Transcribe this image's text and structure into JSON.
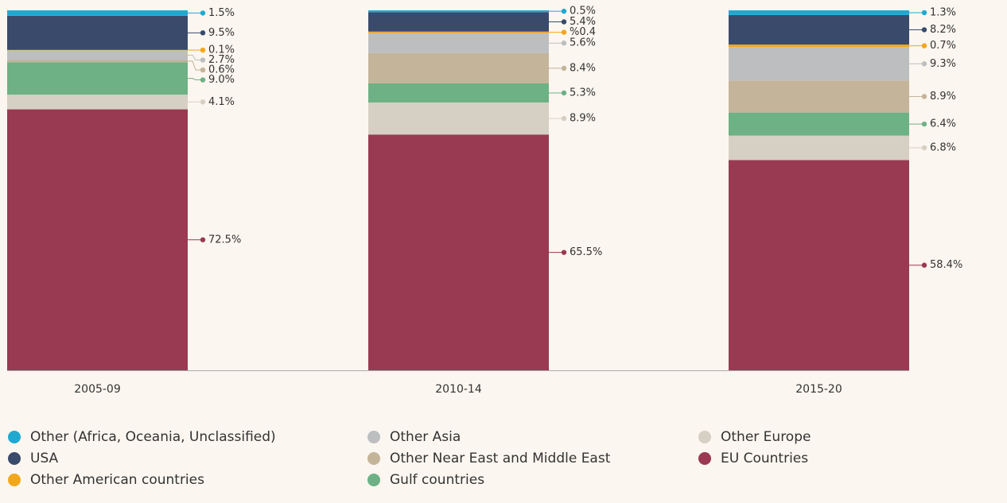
{
  "chart_data": {
    "type": "stacked_bar",
    "categories": [
      "2005-09",
      "2010-14",
      "2015-20"
    ],
    "ylim": [
      0,
      100
    ],
    "series": [
      {
        "name": "Other (Africa, Oceania, Unclassified)",
        "color": "#1fa9d1",
        "values": [
          1.5,
          0.5,
          1.3
        ],
        "value_labels": [
          "1.5%",
          "0.5%",
          "1.3%"
        ]
      },
      {
        "name": "USA",
        "color": "#3a4a6b",
        "values": [
          9.5,
          5.4,
          8.2
        ],
        "value_labels": [
          "9.5%",
          "5.4%",
          "8.2%"
        ]
      },
      {
        "name": "Other American countries",
        "color": "#f2a71b",
        "values": [
          0.1,
          0.4,
          0.7
        ],
        "value_labels": [
          "0.1%",
          "%0.4",
          "0.7%"
        ]
      },
      {
        "name": "Other Asia",
        "color": "#bdbec0",
        "values": [
          2.7,
          5.6,
          9.3
        ],
        "value_labels": [
          "2.7%",
          "5.6%",
          "9.3%"
        ]
      },
      {
        "name": "Other Near East and Middle East",
        "color": "#c4b49a",
        "values": [
          0.6,
          8.4,
          8.9
        ],
        "value_labels": [
          "0.6%",
          "8.4%",
          "8.9%"
        ]
      },
      {
        "name": "Gulf countries",
        "color": "#6db184",
        "values": [
          9.0,
          5.3,
          6.4
        ],
        "value_labels": [
          "9.0%",
          "5.3%",
          "6.4%"
        ]
      },
      {
        "name": "Other Europe",
        "color": "#d6cfc4",
        "values": [
          4.1,
          8.9,
          6.8
        ],
        "value_labels": [
          "4.1%",
          "8.9%",
          "6.8%"
        ]
      },
      {
        "name": "EU Countries",
        "color": "#993a52",
        "values": [
          72.5,
          65.5,
          58.4
        ],
        "value_labels": [
          "72.5%",
          "65.5%",
          "58.4%"
        ]
      }
    ]
  }
}
